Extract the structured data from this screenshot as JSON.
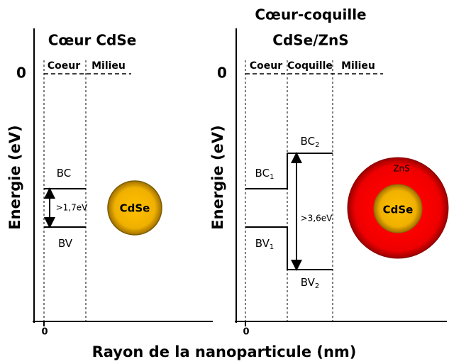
{
  "x_axis_label": "Rayon de la nanoparticule (nm)",
  "panels": [
    {
      "title": [
        "Cœur CdSe"
      ],
      "y_axis_label": "Energie (eV)",
      "y_zero": "0",
      "x_zero": "0",
      "regions": [
        "Coeur",
        "Milieu"
      ],
      "levels": [
        {
          "label": "BC"
        },
        {
          "label": "BV"
        }
      ],
      "gap": ">1,7eV",
      "particle": {
        "core": "CdSe"
      }
    },
    {
      "title": [
        "Cœur-coquille",
        "CdSe/ZnS"
      ],
      "y_axis_label": "Energie (eV)",
      "y_zero": "0",
      "x_zero": "0",
      "regions": [
        "Coeur",
        "Coquille",
        "Milieu"
      ],
      "levels": [
        {
          "label": "BC",
          "subscript": "1"
        },
        {
          "label": "BV",
          "subscript": "1"
        },
        {
          "label": "BC",
          "subscript": "2"
        },
        {
          "label": "BV",
          "subscript": "2"
        }
      ],
      "gap": ">3,6eV",
      "particle": {
        "core": "CdSe",
        "shell": "ZnS"
      }
    }
  ]
}
